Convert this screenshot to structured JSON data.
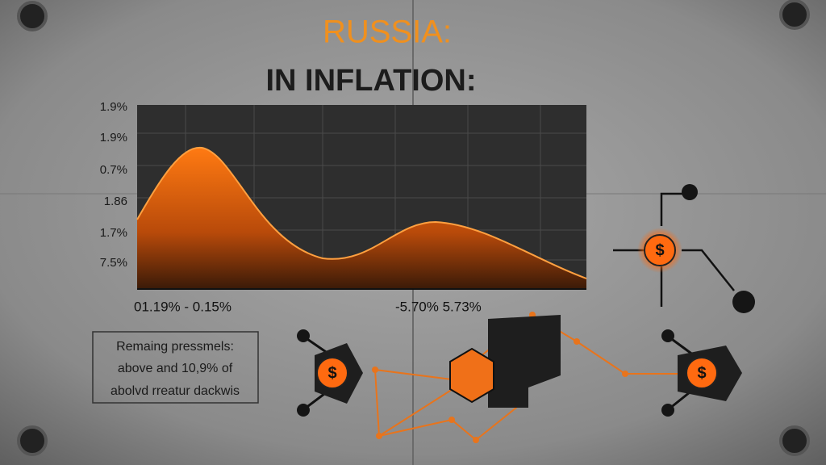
{
  "header": {
    "title": "RUSSIA:",
    "subtitle": "IN INFLATION:"
  },
  "chart": {
    "y_labels": [
      "1.9%",
      "1.9%",
      "0.7%",
      "1.86",
      "1.7%",
      "7.5%"
    ],
    "x_labels": [
      "01.19% - 0.15%",
      "-5.70% 5.73%"
    ]
  },
  "note": {
    "lines": [
      "Remaing pressmels:",
      "above and 10,9% of",
      "abolvd rreatur dackwis"
    ]
  },
  "icons": {
    "symbol": "$"
  }
}
